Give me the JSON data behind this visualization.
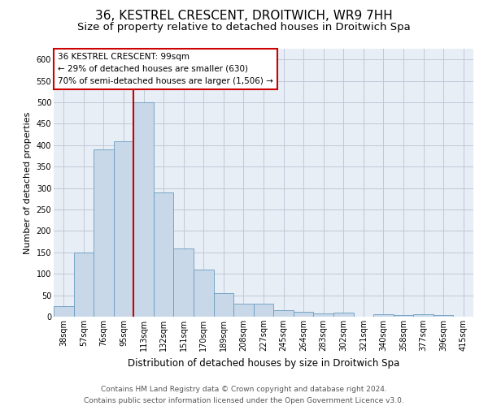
{
  "title": "36, KESTREL CRESCENT, DROITWICH, WR9 7HH",
  "subtitle": "Size of property relative to detached houses in Droitwich Spa",
  "xlabel": "Distribution of detached houses by size in Droitwich Spa",
  "ylabel": "Number of detached properties",
  "footer_line1": "Contains HM Land Registry data © Crown copyright and database right 2024.",
  "footer_line2": "Contains public sector information licensed under the Open Government Licence v3.0.",
  "bar_labels": [
    "38sqm",
    "57sqm",
    "76sqm",
    "95sqm",
    "113sqm",
    "132sqm",
    "151sqm",
    "170sqm",
    "189sqm",
    "208sqm",
    "227sqm",
    "245sqm",
    "264sqm",
    "283sqm",
    "302sqm",
    "321sqm",
    "340sqm",
    "358sqm",
    "377sqm",
    "396sqm",
    "415sqm"
  ],
  "bar_values": [
    25,
    150,
    390,
    410,
    500,
    290,
    160,
    110,
    55,
    30,
    30,
    15,
    12,
    8,
    10,
    0,
    5,
    4,
    5,
    4,
    0
  ],
  "bar_color": "#c8d8e8",
  "bar_edge_color": "#6a9cc0",
  "grid_color": "#c0c8d8",
  "background_color": "#e8eef5",
  "property_line_color": "#cc0000",
  "annotation_text": "36 KESTREL CRESCENT: 99sqm\n← 29% of detached houses are smaller (630)\n70% of semi-detached houses are larger (1,506) →",
  "annotation_box_color": "#cc0000",
  "ylim": [
    0,
    625
  ],
  "yticks": [
    0,
    50,
    100,
    150,
    200,
    250,
    300,
    350,
    400,
    450,
    500,
    550,
    600
  ],
  "title_fontsize": 11,
  "subtitle_fontsize": 9.5,
  "xlabel_fontsize": 8.5,
  "ylabel_fontsize": 8,
  "tick_fontsize": 7,
  "annotation_fontsize": 7.5,
  "footer_fontsize": 6.5
}
